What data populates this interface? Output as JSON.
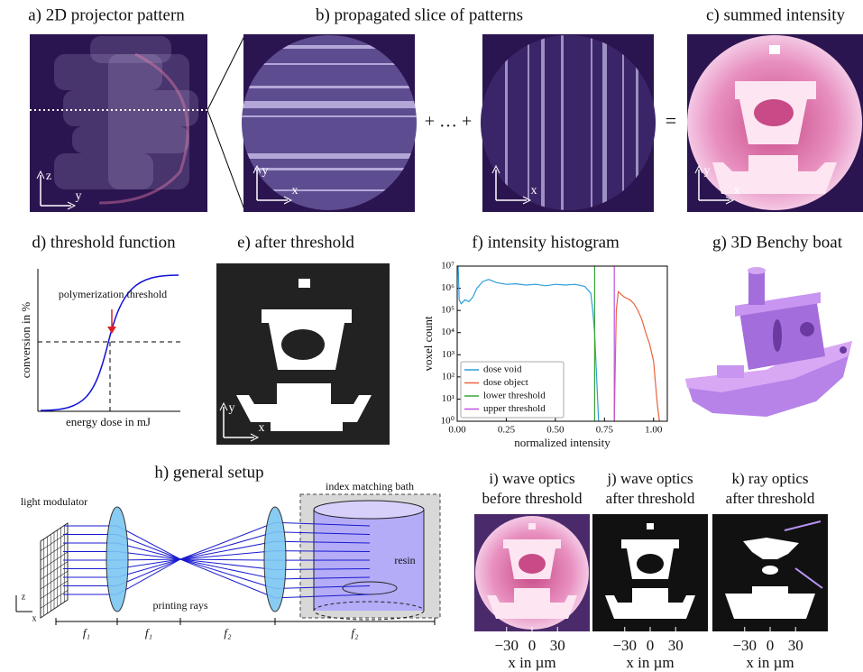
{
  "panels": {
    "a": {
      "title": "a) 2D projector pattern",
      "axis_labels": [
        "z",
        "y"
      ]
    },
    "b": {
      "title": "b) propagated slice of patterns",
      "axis_labels": [
        "y",
        "x",
        "x"
      ],
      "sum_signs": [
        "+ … +",
        "="
      ]
    },
    "c": {
      "title": "c) summed intensity",
      "axis_labels": [
        "y",
        "x"
      ]
    },
    "d": {
      "title": "d) threshold function",
      "xlabel": "energy dose in mJ",
      "ylabel": "conversion in %",
      "annotation": "polymerization threshold"
    },
    "e": {
      "title": "e) after threshold",
      "axis_labels": [
        "y",
        "x"
      ]
    },
    "g": {
      "title": "g) 3D Benchy boat"
    },
    "h": {
      "title": "h) general setup",
      "modulator": "light modulator",
      "bath": "index matching bath",
      "resin": "resin",
      "rays": "printing rays",
      "axis_labels": [
        "z",
        "x"
      ],
      "distances": [
        "f₁",
        "f₁",
        "f₂",
        "f₂"
      ]
    }
  },
  "bottom_panels": [
    {
      "title_lines": [
        "i) wave optics",
        "before threshold"
      ],
      "xlabel": "x in µm",
      "xlim": [
        -68,
        68
      ],
      "xticks": [
        {
          "value": -30,
          "label": "−30"
        },
        0,
        30
      ]
    },
    {
      "title_lines": [
        "j) wave optics",
        "after threshold"
      ],
      "xlabel": "x in µm",
      "xlim": [
        -68,
        68
      ],
      "xticks": [
        {
          "value": -30,
          "label": "−30"
        },
        0,
        30
      ]
    },
    {
      "title_lines": [
        "k) ray optics",
        "after threshold"
      ],
      "xlabel": "x in µm",
      "xlim": [
        -68,
        68
      ],
      "xticks": [
        {
          "value": -30,
          "label": "−30"
        },
        0,
        30
      ]
    }
  ],
  "chart_data": {
    "type": "line",
    "title": "f) intensity histogram",
    "xlabel": "normalized intensity",
    "ylabel": "voxel count",
    "xlim": [
      0,
      1.07
    ],
    "ylim": [
      1,
      10000000
    ],
    "ylog": true,
    "legend": "lower left",
    "xticks": [
      {
        "value": 0,
        "label": "0.00"
      },
      {
        "value": 0.25,
        "label": "0.25"
      },
      {
        "value": 0.5,
        "label": "0.50"
      },
      {
        "value": 0.75,
        "label": "0.75"
      },
      {
        "value": 1,
        "label": "1.00"
      }
    ],
    "yticks": [
      {
        "value": 1,
        "label": "10⁰"
      },
      {
        "value": 10,
        "label": "10¹"
      },
      {
        "value": 100,
        "label": "10²"
      },
      {
        "value": 1000,
        "label": "10³"
      },
      {
        "value": 10000,
        "label": "10⁴"
      },
      {
        "value": 100000,
        "label": "10⁵"
      },
      {
        "value": 1000000,
        "label": "10⁶"
      },
      {
        "value": 10000000,
        "label": "10⁷"
      }
    ],
    "series": [
      {
        "name": "dose void",
        "color": "#2e9fdc",
        "x": [
          0,
          0.005,
          0.01,
          0.02,
          0.04,
          0.06,
          0.08,
          0.1,
          0.13,
          0.16,
          0.2,
          0.25,
          0.3,
          0.35,
          0.4,
          0.45,
          0.5,
          0.55,
          0.6,
          0.65,
          0.68,
          0.69,
          0.7,
          0.705,
          0.71,
          0.715,
          0.72
        ],
        "values": [
          10000000,
          10000000,
          300000,
          200000,
          300000,
          250000,
          400000,
          1000000,
          2000000,
          2500000,
          1800000,
          1500000,
          1600000,
          1400000,
          1500000,
          1300000,
          1500000,
          1400000,
          1500000,
          1200000,
          600000,
          100000,
          10000,
          1000,
          100,
          10,
          1
        ]
      },
      {
        "name": "dose object",
        "color": "#e8643c",
        "x": [
          0.8,
          0.81,
          0.82,
          0.85,
          0.88,
          0.9,
          0.92,
          0.94,
          0.96,
          0.98,
          1.0,
          1.01,
          1.02,
          1.03
        ],
        "values": [
          1,
          100000,
          700000,
          400000,
          300000,
          200000,
          100000,
          40000,
          10000,
          3000,
          500,
          50,
          5,
          1
        ]
      },
      {
        "name": "lower threshold",
        "color": "#3aa63a",
        "x": [
          0.7,
          0.7
        ],
        "values": [
          1,
          10000000
        ]
      },
      {
        "name": "upper threshold",
        "color": "#c050e0",
        "x": [
          0.8,
          0.8
        ],
        "values": [
          1,
          10000000
        ]
      }
    ]
  }
}
